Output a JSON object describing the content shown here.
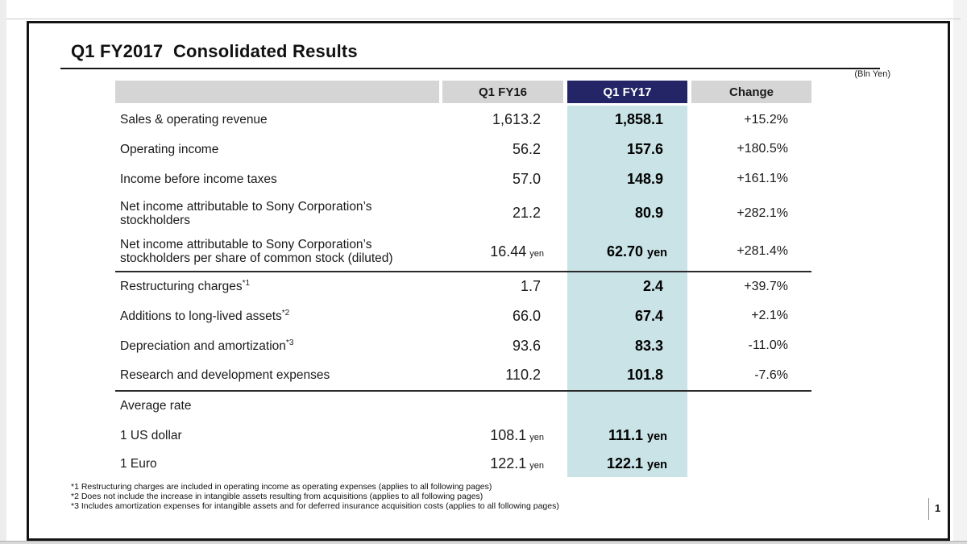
{
  "slide": {
    "title": "Q1 FY2017  Consolidated Results",
    "unit_note": "(Bln Yen)",
    "page_number": "1"
  },
  "table": {
    "headers": {
      "label": "",
      "fy16": "Q1 FY16",
      "fy17": "Q1 FY17",
      "change": "Change"
    },
    "rows": [
      {
        "label": "Sales & operating revenue",
        "fy16": "1,613.2",
        "fy17": "1,858.1",
        "change": "+15.2%"
      },
      {
        "label": "Operating income",
        "fy16": "56.2",
        "fy17": "157.6",
        "change": "+180.5%"
      },
      {
        "label": "Income before income taxes",
        "fy16": "57.0",
        "fy17": "148.9",
        "change": "+161.1%"
      },
      {
        "label": "Net income attributable to Sony Corporation’s stockholders",
        "fy16": "21.2",
        "fy17": "80.9",
        "change": "+282.1%",
        "tall": true
      },
      {
        "label": "Net income attributable to Sony Corporation’s stockholders per share of common stock (diluted)",
        "fy16": "16.44",
        "fy16_unit": "yen",
        "fy17": "62.70",
        "fy17_unit": "yen",
        "change": "+281.4%",
        "tall": true
      },
      {
        "label": "Restructuring charges",
        "sup": "*1",
        "fy16": "1.7",
        "fy17": "2.4",
        "change": "+39.7%",
        "rule": true
      },
      {
        "label": "Additions to long-lived assets",
        "sup": "*2",
        "fy16": "66.0",
        "fy17": "67.4",
        "change": "+2.1%"
      },
      {
        "label": "Depreciation and amortization",
        "sup": "*3",
        "fy16": "93.6",
        "fy17": "83.3",
        "change": "-11.0%"
      },
      {
        "label": "Research and development expenses",
        "fy16": "110.2",
        "fy17": "101.8",
        "change": "-7.6%"
      },
      {
        "label": "Average rate",
        "fy16": "",
        "fy17": "",
        "change": "",
        "rule": true
      },
      {
        "label": "1 US dollar",
        "fy16": "108.1",
        "fy16_unit": "yen",
        "fy17": "111.1",
        "fy17_unit": "yen",
        "change": ""
      },
      {
        "label": "1 Euro",
        "fy16": "122.1",
        "fy16_unit": "yen",
        "fy17": "122.1",
        "fy17_unit": "yen",
        "change": "",
        "short": true
      }
    ]
  },
  "footnotes": [
    "*1 Restructuring charges are included in operating income as operating expenses (applies to all following pages)",
    "*2 Does not include the increase in intangible assets resulting from acquisitions (applies to all following pages)",
    "*3 Includes amortization expenses for intangible assets and for deferred insurance acquisition costs (applies to all following pages)"
  ],
  "colors": {
    "highlight_column": "#c9e3e6",
    "header_navy": "#232566",
    "header_gray": "#d5d5d5"
  }
}
